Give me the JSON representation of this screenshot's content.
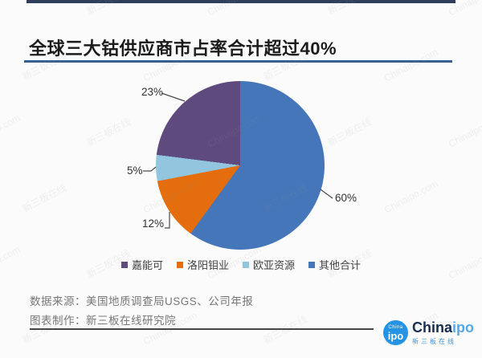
{
  "header": {
    "title": "全球三大钴供应商市占率合计超过40%"
  },
  "chart_data": {
    "type": "pie",
    "title": "全球三大钴供应商市占率合计超过40%",
    "categories": [
      "嘉能可",
      "洛阳钼业",
      "欧亚资源",
      "其他合计"
    ],
    "values": [
      23,
      12,
      5,
      60
    ],
    "labels": [
      "23%",
      "12%",
      "5%",
      "60%"
    ],
    "colors": [
      "#5f4a7d",
      "#e46d0e",
      "#92c5de",
      "#4576b9"
    ],
    "clockwise_from_top": [
      "其他合计",
      "洛阳钼业",
      "欧亚资源",
      "嘉能可"
    ],
    "legend_position": "bottom"
  },
  "footer": {
    "source_line": "数据来源：美国地质调查局USGS、公司年报",
    "credit_line": "图表制作：新三板在线研究院"
  },
  "logo": {
    "badge_top": "China",
    "badge_main": "ipo",
    "wordmark_primary": "China",
    "wordmark_secondary": "ipo",
    "subtitle": "新三板在线"
  },
  "watermarks": {
    "texts": [
      "Chinaipo.com",
      "新三板在线"
    ]
  },
  "theme": {
    "background": "#fbfbfb",
    "top_rule_color": "#2e3e5c",
    "separator_color": "#3a5f8e",
    "leader_line_color": "#4a4a4a"
  }
}
